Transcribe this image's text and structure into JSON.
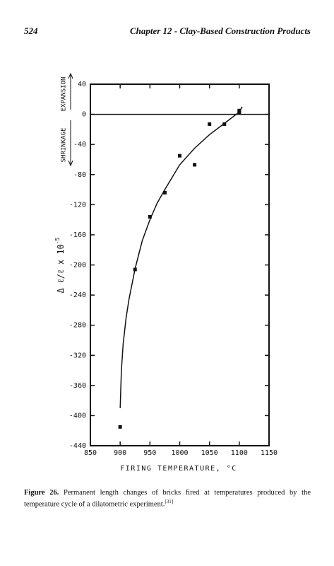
{
  "header": {
    "page": "524",
    "title": "Chapter 12 - Clay-Based Construction Products"
  },
  "chart_data": {
    "type": "scatter",
    "x_label": "FIRING TEMPERATURE, °C",
    "y_label": "Δ ℓ/ℓ x 10",
    "y_label_exponent": "-5",
    "annotations": [
      "EXPANSION",
      "SHRINKAGE"
    ],
    "xlim": [
      850,
      1150
    ],
    "xticks": [
      850,
      900,
      950,
      1000,
      1050,
      1100,
      1150
    ],
    "ylim": [
      -440,
      40
    ],
    "yticks": [
      40,
      0,
      -40,
      -80,
      -120,
      -160,
      -200,
      -240,
      -280,
      -320,
      -360,
      -400,
      -440
    ],
    "grid": false,
    "series": [
      {
        "color": "#111111",
        "x": [
          900,
          925,
          950,
          975,
          1000,
          1025,
          1050,
          1075,
          1100,
          1100
        ],
        "values": [
          -415,
          -206,
          -136,
          -104,
          -55,
          -67,
          -13,
          -13,
          5,
          2
        ]
      }
    ],
    "fit": {
      "color": "#111111",
      "x": [
        900,
        902,
        905,
        910,
        915,
        925,
        937,
        950,
        962,
        975,
        1000,
        1025,
        1050,
        1075,
        1100,
        1105
      ],
      "values": [
        -390,
        -340,
        -305,
        -270,
        -245,
        -205,
        -168,
        -140,
        -118,
        -100,
        -67,
        -45,
        -27,
        -12,
        3,
        10
      ]
    }
  },
  "caption": {
    "label": "Figure 26.",
    "text": "Permanent length changes of bricks fired at temperatures produced by the temperature cycle of a dilatometric experiment.",
    "ref": "[31]"
  }
}
